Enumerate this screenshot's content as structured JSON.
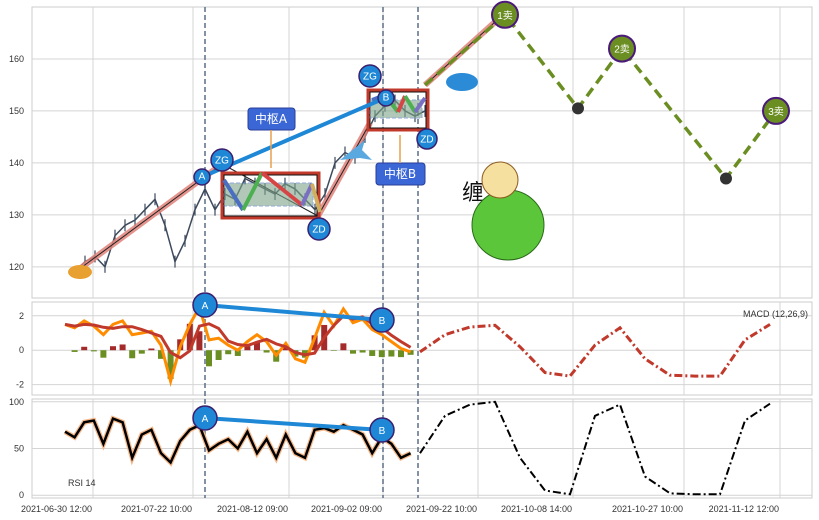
{
  "chart_data": [
    {
      "type": "line",
      "panel": "price",
      "y_ticks": [
        120,
        130,
        140,
        150,
        160
      ],
      "ylim": [
        114,
        170
      ],
      "price": [
        119,
        121,
        122,
        120,
        126,
        128,
        129,
        131,
        133,
        128,
        121,
        125,
        131,
        135,
        131,
        134,
        133,
        137,
        136,
        135,
        134,
        136,
        135,
        133,
        131,
        134,
        140,
        142,
        141,
        145,
        149,
        151,
        152,
        150,
        149,
        150
      ],
      "projection": {
        "values": [
          150,
          168.5,
          150.5,
          162,
          137,
          150
        ],
        "labels": [
          "",
          "1卖",
          "",
          "2卖",
          "",
          "3卖"
        ],
        "color": "#6b8e23"
      },
      "annotations": {
        "A": "A",
        "B": "B",
        "zg": "ZG",
        "zd": "ZD",
        "zhongshu_a": "中枢A",
        "zhongshu_b": "中枢B",
        "title_art": "缠 论"
      },
      "zhongshu_a": {
        "zg": 138,
        "zd": 130
      },
      "zhongshu_b": {
        "zg": 154,
        "zd": 147
      }
    },
    {
      "type": "line",
      "panel": "macd",
      "label": "MACD (12,26,9)",
      "y_ticks": [
        -2,
        0,
        2
      ],
      "ylim": [
        -2.6,
        2.8
      ],
      "dif": [
        1.5,
        1.3,
        1.7,
        1.4,
        0.9,
        1.5,
        1.7,
        0.9,
        1.0,
        1.1,
        0.3,
        -1.8,
        0.2,
        1.5,
        2.5,
        0.6,
        0.7,
        0.3,
        0,
        0.5,
        0.9,
        0.5,
        -0.3,
        0.4,
        -0.5,
        -0.7,
        0.7,
        2.2,
        1.4,
        2.4,
        1.6,
        1.8,
        1.2,
        0.9,
        0.5,
        0.1,
        -0.1
      ],
      "projection": [
        -0.1,
        0.9,
        1.35,
        1.45,
        0.2,
        -1.3,
        -1.5,
        0.3,
        1.3,
        -0.5,
        -1.45,
        -1.5,
        -1.5,
        0.6,
        1.5
      ],
      "colors": {
        "dif": "#ff8c00",
        "dea": "#c0392b",
        "hist_pos": "#a52a2a",
        "hist_neg": "#6b8e23"
      }
    },
    {
      "type": "line",
      "panel": "rsi",
      "label": "RSI 14",
      "y_ticks": [
        0,
        50,
        100
      ],
      "ylim": [
        -3,
        103
      ],
      "rsi": [
        68,
        62,
        78,
        80,
        55,
        82,
        78,
        40,
        65,
        70,
        45,
        35,
        58,
        70,
        75,
        48,
        55,
        60,
        50,
        68,
        45,
        60,
        40,
        65,
        45,
        40,
        70,
        72,
        68,
        75,
        70,
        65,
        45,
        62,
        55,
        40,
        45
      ],
      "projection": [
        45,
        85,
        97,
        100,
        40,
        5,
        1,
        85,
        97,
        20,
        2,
        1,
        1,
        80,
        98
      ]
    }
  ],
  "x_ticks": [
    "2021-06-30 12:00",
    "2021-07-22 10:00",
    "2021-08-12 09:00",
    "2021-09-02 09:00",
    "2021-09-22 10:00",
    "2021-10-08 14:00",
    "2021-10-27 10:00",
    "2021-11-12 12:00"
  ],
  "divergence": {
    "A": "A",
    "B": "B"
  }
}
